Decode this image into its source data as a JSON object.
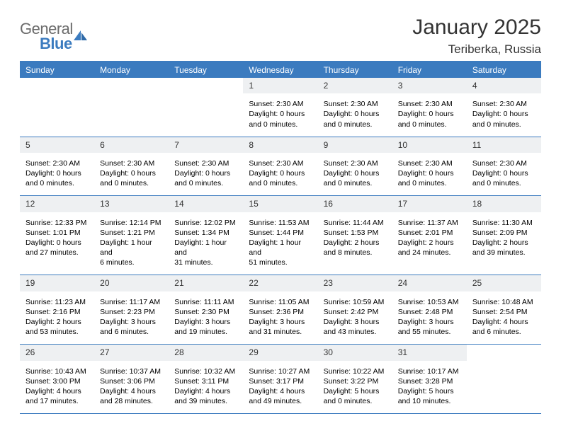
{
  "logo": {
    "general": "General",
    "blue": "Blue"
  },
  "title": "January 2025",
  "location": "Teriberka, Russia",
  "colors": {
    "brand": "#3b7bbf",
    "headerText": "#ffffff",
    "dateBg": "#eef0f2",
    "text": "#000000",
    "titleText": "#333333",
    "background": "#ffffff"
  },
  "dayNames": [
    "Sunday",
    "Monday",
    "Tuesday",
    "Wednesday",
    "Thursday",
    "Friday",
    "Saturday"
  ],
  "weeks": [
    [
      {
        "empty": true
      },
      {
        "empty": true
      },
      {
        "empty": true
      },
      {
        "date": "1",
        "lines": [
          "Sunset: 2:30 AM",
          "Daylight: 0 hours",
          "and 0 minutes."
        ]
      },
      {
        "date": "2",
        "lines": [
          "Sunset: 2:30 AM",
          "Daylight: 0 hours",
          "and 0 minutes."
        ]
      },
      {
        "date": "3",
        "lines": [
          "Sunset: 2:30 AM",
          "Daylight: 0 hours",
          "and 0 minutes."
        ]
      },
      {
        "date": "4",
        "lines": [
          "Sunset: 2:30 AM",
          "Daylight: 0 hours",
          "and 0 minutes."
        ]
      }
    ],
    [
      {
        "date": "5",
        "lines": [
          "Sunset: 2:30 AM",
          "Daylight: 0 hours",
          "and 0 minutes."
        ]
      },
      {
        "date": "6",
        "lines": [
          "Sunset: 2:30 AM",
          "Daylight: 0 hours",
          "and 0 minutes."
        ]
      },
      {
        "date": "7",
        "lines": [
          "Sunset: 2:30 AM",
          "Daylight: 0 hours",
          "and 0 minutes."
        ]
      },
      {
        "date": "8",
        "lines": [
          "Sunset: 2:30 AM",
          "Daylight: 0 hours",
          "and 0 minutes."
        ]
      },
      {
        "date": "9",
        "lines": [
          "Sunset: 2:30 AM",
          "Daylight: 0 hours",
          "and 0 minutes."
        ]
      },
      {
        "date": "10",
        "lines": [
          "Sunset: 2:30 AM",
          "Daylight: 0 hours",
          "and 0 minutes."
        ]
      },
      {
        "date": "11",
        "lines": [
          "Sunset: 2:30 AM",
          "Daylight: 0 hours",
          "and 0 minutes."
        ]
      }
    ],
    [
      {
        "date": "12",
        "lines": [
          "Sunrise: 12:33 PM",
          "Sunset: 1:01 PM",
          "Daylight: 0 hours",
          "and 27 minutes."
        ]
      },
      {
        "date": "13",
        "lines": [
          "Sunrise: 12:14 PM",
          "Sunset: 1:21 PM",
          "Daylight: 1 hour and",
          "6 minutes."
        ]
      },
      {
        "date": "14",
        "lines": [
          "Sunrise: 12:02 PM",
          "Sunset: 1:34 PM",
          "Daylight: 1 hour and",
          "31 minutes."
        ]
      },
      {
        "date": "15",
        "lines": [
          "Sunrise: 11:53 AM",
          "Sunset: 1:44 PM",
          "Daylight: 1 hour and",
          "51 minutes."
        ]
      },
      {
        "date": "16",
        "lines": [
          "Sunrise: 11:44 AM",
          "Sunset: 1:53 PM",
          "Daylight: 2 hours",
          "and 8 minutes."
        ]
      },
      {
        "date": "17",
        "lines": [
          "Sunrise: 11:37 AM",
          "Sunset: 2:01 PM",
          "Daylight: 2 hours",
          "and 24 minutes."
        ]
      },
      {
        "date": "18",
        "lines": [
          "Sunrise: 11:30 AM",
          "Sunset: 2:09 PM",
          "Daylight: 2 hours",
          "and 39 minutes."
        ]
      }
    ],
    [
      {
        "date": "19",
        "lines": [
          "Sunrise: 11:23 AM",
          "Sunset: 2:16 PM",
          "Daylight: 2 hours",
          "and 53 minutes."
        ]
      },
      {
        "date": "20",
        "lines": [
          "Sunrise: 11:17 AM",
          "Sunset: 2:23 PM",
          "Daylight: 3 hours",
          "and 6 minutes."
        ]
      },
      {
        "date": "21",
        "lines": [
          "Sunrise: 11:11 AM",
          "Sunset: 2:30 PM",
          "Daylight: 3 hours",
          "and 19 minutes."
        ]
      },
      {
        "date": "22",
        "lines": [
          "Sunrise: 11:05 AM",
          "Sunset: 2:36 PM",
          "Daylight: 3 hours",
          "and 31 minutes."
        ]
      },
      {
        "date": "23",
        "lines": [
          "Sunrise: 10:59 AM",
          "Sunset: 2:42 PM",
          "Daylight: 3 hours",
          "and 43 minutes."
        ]
      },
      {
        "date": "24",
        "lines": [
          "Sunrise: 10:53 AM",
          "Sunset: 2:48 PM",
          "Daylight: 3 hours",
          "and 55 minutes."
        ]
      },
      {
        "date": "25",
        "lines": [
          "Sunrise: 10:48 AM",
          "Sunset: 2:54 PM",
          "Daylight: 4 hours",
          "and 6 minutes."
        ]
      }
    ],
    [
      {
        "date": "26",
        "lines": [
          "Sunrise: 10:43 AM",
          "Sunset: 3:00 PM",
          "Daylight: 4 hours",
          "and 17 minutes."
        ]
      },
      {
        "date": "27",
        "lines": [
          "Sunrise: 10:37 AM",
          "Sunset: 3:06 PM",
          "Daylight: 4 hours",
          "and 28 minutes."
        ]
      },
      {
        "date": "28",
        "lines": [
          "Sunrise: 10:32 AM",
          "Sunset: 3:11 PM",
          "Daylight: 4 hours",
          "and 39 minutes."
        ]
      },
      {
        "date": "29",
        "lines": [
          "Sunrise: 10:27 AM",
          "Sunset: 3:17 PM",
          "Daylight: 4 hours",
          "and 49 minutes."
        ]
      },
      {
        "date": "30",
        "lines": [
          "Sunrise: 10:22 AM",
          "Sunset: 3:22 PM",
          "Daylight: 5 hours",
          "and 0 minutes."
        ]
      },
      {
        "date": "31",
        "lines": [
          "Sunrise: 10:17 AM",
          "Sunset: 3:28 PM",
          "Daylight: 5 hours",
          "and 10 minutes."
        ]
      },
      {
        "empty": true
      }
    ]
  ]
}
